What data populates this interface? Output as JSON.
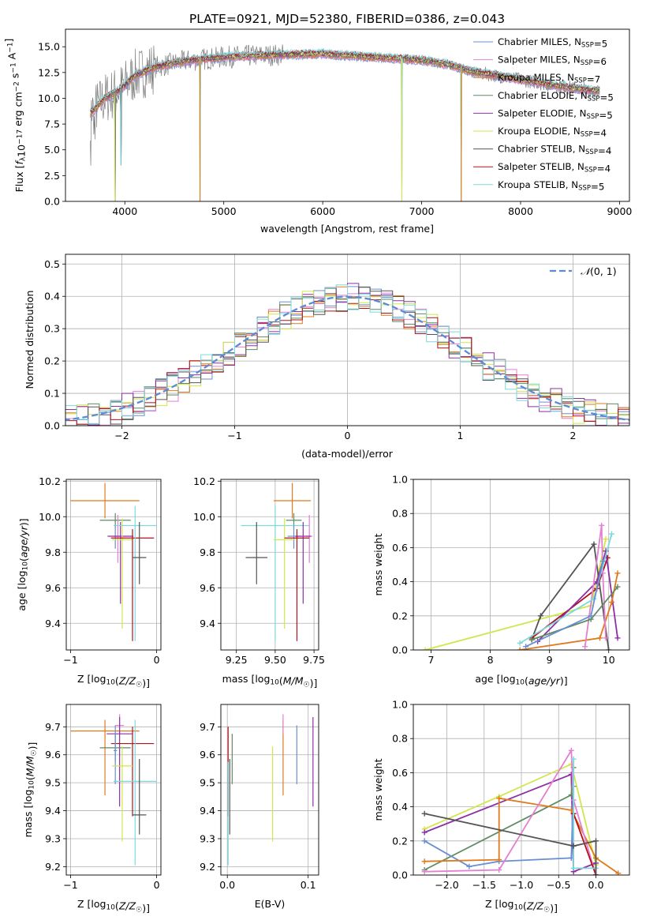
{
  "figure": {
    "title": "PLATE=0921, MJD=52380, FIBERID=0386, z=0.043"
  },
  "colors": {
    "Chabrier MILES": "#6a8fd1",
    "Salpeter MILES": "#e57fd0",
    "Kroupa MILES": "#e07a1c",
    "Chabrier ELODIE": "#5e8c63",
    "Salpeter ELODIE": "#8e2fa6",
    "Kroupa ELODIE": "#d2e64c",
    "Chabrier STELIB": "#555555",
    "Salpeter STELIB": "#b0121b",
    "Kroupa STELIB": "#7fd8dd",
    "data": "#808080",
    "gaussian": "#5b8bd6"
  },
  "chart_data": [
    {
      "id": "spectrum",
      "type": "line",
      "title": "PLATE=0921, MJD=52380, FIBERID=0386, z=0.043",
      "xlabel": "wavelength [Angstrom, rest frame]",
      "ylabel": "Flux [f_λ 10^-17 erg cm^-2 s^-1 A^-1]",
      "xlim": [
        3400,
        9100
      ],
      "ylim": [
        0,
        16.7
      ],
      "xticks": [
        4000,
        5000,
        6000,
        7000,
        8000,
        9000
      ],
      "yticks": [
        0.0,
        2.5,
        5.0,
        7.5,
        10.0,
        12.5,
        15.0
      ],
      "legend_position": "right",
      "legend": [
        {
          "name": "Chabrier MILES",
          "nssp": "5"
        },
        {
          "name": "Salpeter MILES",
          "nssp": "6"
        },
        {
          "name": "Kroupa MILES",
          "nssp": "7"
        },
        {
          "name": "Chabrier ELODIE",
          "nssp": "5"
        },
        {
          "name": "Salpeter ELODIE",
          "nssp": "5"
        },
        {
          "name": "Kroupa ELODIE",
          "nssp": "4"
        },
        {
          "name": "Chabrier STELIB",
          "nssp": "4"
        },
        {
          "name": "Salpeter STELIB",
          "nssp": "4"
        },
        {
          "name": "Kroupa STELIB",
          "nssp": "5"
        }
      ],
      "continuum": {
        "x": [
          3650,
          3800,
          3950,
          4100,
          4300,
          4600,
          5000,
          5500,
          6000,
          6500,
          7000,
          7300,
          7500,
          8000,
          8300,
          8600,
          8800
        ],
        "y": [
          8.5,
          10.0,
          10.8,
          12.2,
          13.0,
          13.6,
          14.0,
          14.2,
          14.3,
          14.0,
          13.7,
          13.2,
          12.6,
          11.8,
          11.3,
          10.9,
          10.7
        ]
      },
      "dropouts": [
        {
          "x": 3900,
          "y": 0.0
        },
        {
          "x": 3960,
          "y": 3.5
        },
        {
          "x": 4760,
          "y": 0.0
        },
        {
          "x": 6800,
          "y": 0.0
        },
        {
          "x": 7400,
          "y": 0.0
        }
      ]
    },
    {
      "id": "residuals",
      "type": "bar",
      "xlabel": "(data-model)/error",
      "ylabel": "Normed distribution",
      "xlim": [
        -2.5,
        2.5
      ],
      "ylim": [
        0,
        0.53
      ],
      "xticks": [
        -2,
        -1,
        0,
        1,
        2
      ],
      "yticks": [
        0.0,
        0.1,
        0.2,
        0.3,
        0.4,
        0.5
      ],
      "bin_width": 0.1,
      "legend": "N(0,1)",
      "gaussian": {
        "mean": 0,
        "sigma": 1
      }
    },
    {
      "id": "age-vs-Z",
      "type": "scatter",
      "xlabel": "Z [log10(Z/Z☉)]",
      "ylabel": "age [log10(age/yr)]",
      "xlim": [
        -1.05,
        0.05
      ],
      "ylim": [
        9.25,
        10.21
      ],
      "xticks": [
        -1,
        0
      ],
      "yticks": [
        9.4,
        9.6,
        9.8,
        10.0,
        10.2
      ],
      "points": [
        {
          "model": "Kroupa MILES",
          "x": -0.6,
          "y": 10.09,
          "xerr": 0.4,
          "yerr_lo": 0.1,
          "yerr_hi": 0.1
        },
        {
          "model": "Chabrier ELODIE",
          "x": -0.48,
          "y": 9.98,
          "xerr": 0.18,
          "yerr_lo": 0.04,
          "yerr_hi": 0.04
        },
        {
          "model": "Salpeter MILES",
          "x": -0.45,
          "y": 9.89,
          "xerr": 0.05,
          "yerr_lo": 0.15,
          "yerr_hi": 0.12
        },
        {
          "model": "Chabrier MILES",
          "x": -0.48,
          "y": 9.89,
          "xerr": 0.02,
          "yerr_lo": 0.07,
          "yerr_hi": 0.06
        },
        {
          "model": "Salpeter ELODIE",
          "x": -0.42,
          "y": 9.89,
          "xerr": 0.15,
          "yerr_lo": 0.38,
          "yerr_hi": 0.08
        },
        {
          "model": "Kroupa ELODIE",
          "x": -0.4,
          "y": 9.87,
          "xerr": 0.12,
          "yerr_lo": 0.5,
          "yerr_hi": 0.12
        },
        {
          "model": "Salpeter STELIB",
          "x": -0.28,
          "y": 9.88,
          "xerr": 0.25,
          "yerr_lo": 0.58,
          "yerr_hi": 0.05
        },
        {
          "model": "Kroupa STELIB",
          "x": -0.25,
          "y": 9.95,
          "xerr": 0.25,
          "yerr_lo": 0.65,
          "yerr_hi": 0.11
        },
        {
          "model": "Chabrier STELIB",
          "x": -0.2,
          "y": 9.77,
          "xerr": 0.08,
          "yerr_lo": 0.15,
          "yerr_hi": 0.2
        }
      ]
    },
    {
      "id": "age-vs-mass",
      "type": "scatter",
      "xlabel": "mass [log10(M/M☉)]",
      "ylabel": "",
      "xlim": [
        9.15,
        9.78
      ],
      "ylim": [
        9.25,
        10.21
      ],
      "xticks": [
        9.25,
        9.5,
        9.75
      ],
      "yticks": [
        9.4,
        9.6,
        9.8,
        10.0,
        10.2
      ],
      "points": [
        {
          "model": "Kroupa MILES",
          "x": 9.61,
          "y": 10.09,
          "xerr": 0.12,
          "yerr_lo": 0.1,
          "yerr_hi": 0.1
        },
        {
          "model": "Chabrier ELODIE",
          "x": 9.62,
          "y": 9.98,
          "xerr": 0.05,
          "yerr_lo": 0.04,
          "yerr_hi": 0.04
        },
        {
          "model": "Kroupa STELIB",
          "x": 9.5,
          "y": 9.95,
          "xerr": 0.22,
          "yerr_lo": 0.65,
          "yerr_hi": 0.11
        },
        {
          "model": "Salpeter MILES",
          "x": 9.72,
          "y": 9.89,
          "xerr": 0.02,
          "yerr_lo": 0.15,
          "yerr_hi": 0.12
        },
        {
          "model": "Chabrier MILES",
          "x": 9.62,
          "y": 9.89,
          "xerr": 0.04,
          "yerr_lo": 0.07,
          "yerr_hi": 0.06
        },
        {
          "model": "Salpeter ELODIE",
          "x": 9.68,
          "y": 9.89,
          "xerr": 0.05,
          "yerr_lo": 0.38,
          "yerr_hi": 0.08
        },
        {
          "model": "Kroupa ELODIE",
          "x": 9.56,
          "y": 9.87,
          "xerr": 0.07,
          "yerr_lo": 0.5,
          "yerr_hi": 0.12
        },
        {
          "model": "Salpeter STELIB",
          "x": 9.64,
          "y": 9.88,
          "xerr": 0.08,
          "yerr_lo": 0.58,
          "yerr_hi": 0.05
        },
        {
          "model": "Chabrier STELIB",
          "x": 9.38,
          "y": 9.77,
          "xerr": 0.07,
          "yerr_lo": 0.15,
          "yerr_hi": 0.2
        }
      ]
    },
    {
      "id": "massweight-vs-age",
      "type": "line",
      "xlabel": "age [log10(age/yr)]",
      "ylabel": "mass weight",
      "xlim": [
        6.7,
        10.35
      ],
      "ylim": [
        0,
        1.0
      ],
      "xticks": [
        7,
        8,
        9,
        10
      ],
      "yticks": [
        0.0,
        0.2,
        0.4,
        0.6,
        0.8,
        1.0
      ],
      "series": [
        {
          "model": "Kroupa ELODIE",
          "x": [
            6.9,
            9.7,
            9.95
          ],
          "y": [
            0.0,
            0.26,
            0.65
          ]
        },
        {
          "model": "Chabrier STELIB",
          "x": [
            8.7,
            8.85,
            9.75,
            10.0
          ],
          "y": [
            0.06,
            0.2,
            0.62,
            0.0
          ]
        },
        {
          "model": "Salpeter STELIB",
          "x": [
            8.7,
            9.8,
            9.98
          ],
          "y": [
            0.07,
            0.36,
            0.54
          ]
        },
        {
          "model": "Salpeter ELODIE",
          "x": [
            8.8,
            9.8,
            9.95,
            10.15
          ],
          "y": [
            0.05,
            0.4,
            0.58,
            0.07
          ]
        },
        {
          "model": "Kroupa MILES",
          "x": [
            8.5,
            9.85,
            10.05,
            10.15
          ],
          "y": [
            0.0,
            0.07,
            0.28,
            0.45
          ]
        },
        {
          "model": "Salpeter MILES",
          "x": [
            9.6,
            9.88,
            9.9,
            9.95
          ],
          "y": [
            0.02,
            0.73,
            0.45,
            0.07
          ]
        },
        {
          "model": "Chabrier ELODIE",
          "x": [
            8.7,
            9.7,
            10.15
          ],
          "y": [
            0.06,
            0.18,
            0.37
          ]
        },
        {
          "model": "Kroupa STELIB",
          "x": [
            8.5,
            9.75,
            10.05
          ],
          "y": [
            0.04,
            0.3,
            0.68
          ]
        },
        {
          "model": "Chabrier MILES",
          "x": [
            8.6,
            9.7,
            9.9
          ],
          "y": [
            0.02,
            0.2,
            0.52
          ]
        }
      ]
    },
    {
      "id": "mass-vs-Z",
      "type": "scatter",
      "xlabel": "Z [log10(Z/Z☉)]",
      "ylabel": "mass [log10(M/M☉)]",
      "xlim": [
        -1.05,
        0.05
      ],
      "ylim": [
        9.17,
        9.78
      ],
      "xticks": [
        -1,
        0
      ],
      "yticks": [
        9.2,
        9.3,
        9.4,
        9.5,
        9.6,
        9.7
      ],
      "points": [
        {
          "model": "Kroupa MILES",
          "x": -0.6,
          "y": 9.685,
          "xerr": 0.4,
          "yerr_lo": 0.23,
          "yerr_hi": 0.04
        },
        {
          "model": "Salpeter MILES",
          "x": -0.43,
          "y": 9.705,
          "xerr": 0.05,
          "yerr_lo": 0.03,
          "yerr_hi": 0.04
        },
        {
          "model": "Salpeter ELODIE",
          "x": -0.43,
          "y": 9.675,
          "xerr": 0.15,
          "yerr_lo": 0.26,
          "yerr_hi": 0.06
        },
        {
          "model": "Salpeter STELIB",
          "x": -0.28,
          "y": 9.64,
          "xerr": 0.25,
          "yerr_lo": 0.26,
          "yerr_hi": 0.06
        },
        {
          "model": "Chabrier ELODIE",
          "x": -0.48,
          "y": 9.625,
          "xerr": 0.18,
          "yerr_lo": 0.05,
          "yerr_hi": 0.05
        },
        {
          "model": "Chabrier MILES",
          "x": -0.48,
          "y": 9.615,
          "xerr": 0.02,
          "yerr_lo": 0.12,
          "yerr_hi": 0.09
        },
        {
          "model": "Kroupa ELODIE",
          "x": -0.4,
          "y": 9.56,
          "xerr": 0.12,
          "yerr_lo": 0.27,
          "yerr_hi": 0.07
        },
        {
          "model": "Kroupa STELIB",
          "x": -0.25,
          "y": 9.505,
          "xerr": 0.25,
          "yerr_lo": 0.3,
          "yerr_hi": 0.22
        },
        {
          "model": "Chabrier STELIB",
          "x": -0.2,
          "y": 9.385,
          "xerr": 0.08,
          "yerr_lo": 0.07,
          "yerr_hi": 0.2
        }
      ]
    },
    {
      "id": "mass-vs-EBV",
      "type": "scatter",
      "xlabel": "E(B-V)",
      "ylabel": "",
      "xlim": [
        -0.008,
        0.113
      ],
      "ylim": [
        9.17,
        9.78
      ],
      "xticks": [
        0.0,
        0.1
      ],
      "yticks": [
        9.2,
        9.3,
        9.4,
        9.5,
        9.6,
        9.7
      ],
      "points": [
        {
          "model": "Salpeter ELODIE",
          "x": 0.106,
          "y": 9.675,
          "yerr_lo": 0.26,
          "yerr_hi": 0.06
        },
        {
          "model": "Chabrier MILES",
          "x": 0.086,
          "y": 9.615,
          "yerr_lo": 0.12,
          "yerr_hi": 0.09
        },
        {
          "model": "Kroupa MILES",
          "x": 0.069,
          "y": 9.685,
          "yerr_lo": 0.23,
          "yerr_hi": 0.04
        },
        {
          "model": "Salpeter MILES",
          "x": 0.069,
          "y": 9.705,
          "yerr_lo": 0.03,
          "yerr_hi": 0.04
        },
        {
          "model": "Kroupa ELODIE",
          "x": 0.056,
          "y": 9.56,
          "yerr_lo": 0.27,
          "yerr_hi": 0.07
        },
        {
          "model": "Chabrier ELODIE",
          "x": 0.006,
          "y": 9.625,
          "yerr_lo": 0.13,
          "yerr_hi": 0.05
        },
        {
          "model": "Salpeter STELIB",
          "x": 0.001,
          "y": 9.64,
          "yerr_lo": 0.26,
          "yerr_hi": 0.06
        },
        {
          "model": "Chabrier STELIB",
          "x": 0.003,
          "y": 9.385,
          "yerr_lo": 0.07,
          "yerr_hi": 0.2
        },
        {
          "model": "Kroupa STELIB",
          "x": 0.001,
          "y": 9.505,
          "yerr_lo": 0.3,
          "yerr_hi": 0.07
        }
      ]
    },
    {
      "id": "massweight-vs-Z",
      "type": "line",
      "xlabel": "Z [log10(Z/Z☉)]",
      "ylabel": "mass weight",
      "xlim": [
        -2.45,
        0.45
      ],
      "ylim": [
        0,
        1.0
      ],
      "xticks": [
        -2.0,
        -1.5,
        -1.0,
        -0.5,
        0.0
      ],
      "yticks": [
        0.0,
        0.2,
        0.4,
        0.6,
        0.8,
        1.0
      ],
      "series": [
        {
          "model": "Kroupa ELODIE",
          "x": [
            -2.3,
            -1.3,
            -0.33,
            0.0
          ],
          "y": [
            0.27,
            0.46,
            0.65,
            0.06
          ]
        },
        {
          "model": "Salpeter ELODIE",
          "x": [
            -2.3,
            -0.33,
            -0.3,
            0.0
          ],
          "y": [
            0.25,
            0.59,
            0.02,
            0.07
          ]
        },
        {
          "model": "Chabrier ELODIE",
          "x": [
            -2.3,
            -0.33,
            -0.3
          ],
          "y": [
            0.03,
            0.47,
            0.63
          ]
        },
        {
          "model": "Chabrier MILES",
          "x": [
            -2.3,
            -1.7,
            -1.3,
            -0.33,
            -0.3
          ],
          "y": [
            0.2,
            0.05,
            0.08,
            0.1,
            0.52
          ]
        },
        {
          "model": "Kroupa MILES",
          "x": [
            -2.3,
            -1.3,
            -1.3,
            -0.33,
            0.0,
            0.3
          ],
          "y": [
            0.08,
            0.09,
            0.45,
            0.38,
            0.1,
            0.01
          ]
        },
        {
          "model": "Salpeter MILES",
          "x": [
            -2.3,
            -1.3,
            -0.33,
            -0.3,
            0.0
          ],
          "y": [
            0.02,
            0.03,
            0.73,
            0.44,
            0.0
          ]
        },
        {
          "model": "Salpeter STELIB",
          "x": [
            -0.3,
            0.0
          ],
          "y": [
            0.36,
            0.0
          ]
        },
        {
          "model": "Kroupa STELIB",
          "x": [
            -0.3,
            -0.3,
            0.0
          ],
          "y": [
            0.68,
            0.04,
            0.04
          ]
        },
        {
          "model": "Chabrier STELIB",
          "x": [
            -2.3,
            -0.3,
            0.0,
            0.0
          ],
          "y": [
            0.36,
            0.17,
            0.2,
            0.0
          ]
        }
      ]
    }
  ]
}
